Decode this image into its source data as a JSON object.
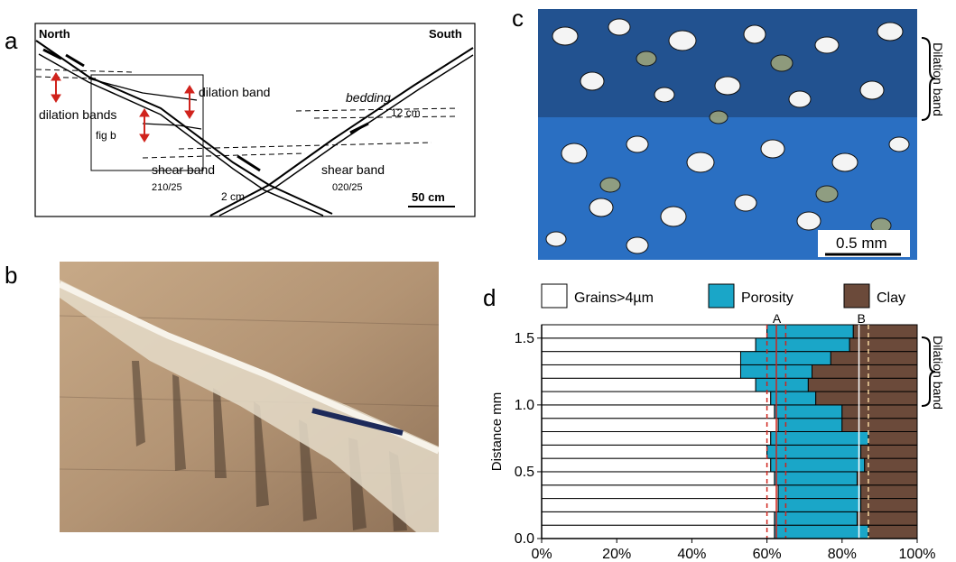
{
  "panels": {
    "a": {
      "letter": "a",
      "north": "North",
      "south": "South",
      "dilation_band": "dilation band",
      "dilation_bands": "dilation bands",
      "fig_b": "fig b",
      "bedding": "bedding",
      "offset_12": "12 cm",
      "shear_band_left": "shear band",
      "shear_band_left_orient": "210/25",
      "offset_2": "2 cm",
      "shear_band_right": "shear band",
      "shear_band_right_orient": "020/25",
      "scale": "50 cm"
    },
    "b": {
      "letter": "b"
    },
    "c": {
      "letter": "c",
      "scale": "0.5 mm",
      "side_label": "Dilation band"
    },
    "d": {
      "letter": "d",
      "side_label": "Dilation band",
      "marker_a": "A",
      "marker_b": "B"
    }
  },
  "chart_data": {
    "type": "bar",
    "orientation": "horizontal-stacked",
    "xlabel": "",
    "ylabel": "Distance mm",
    "xlim": [
      0,
      100
    ],
    "ylim": [
      0,
      1.6
    ],
    "x_ticks": [
      "0%",
      "20%",
      "40%",
      "60%",
      "80%",
      "100%"
    ],
    "y_ticks": [
      "0.0",
      "0.5",
      "1.0",
      "1.5"
    ],
    "legend": [
      "Grains>4µm",
      "Porosity",
      "Clay"
    ],
    "legend_position": "top",
    "colors": {
      "grains": "#ffffff",
      "porosity": "#1aa6c8",
      "clay": "#6b4a3a"
    },
    "distances": [
      0.05,
      0.15,
      0.25,
      0.35,
      0.45,
      0.55,
      0.65,
      0.75,
      0.85,
      0.95,
      1.05,
      1.15,
      1.25,
      1.35,
      1.45,
      1.55
    ],
    "series": [
      {
        "name": "Grains>4µm",
        "values": [
          62,
          62,
          63,
          63,
          62,
          61,
          60,
          61,
          63,
          62,
          61,
          57,
          53,
          53,
          57,
          60
        ]
      },
      {
        "name": "Porosity",
        "values": [
          25,
          22,
          22,
          22,
          22,
          25,
          25,
          26,
          17,
          18,
          12,
          14,
          19,
          24,
          25,
          23
        ]
      },
      {
        "name": "Clay",
        "values": [
          13,
          16,
          15,
          15,
          16,
          14,
          15,
          13,
          20,
          20,
          27,
          29,
          28,
          23,
          18,
          17
        ]
      }
    ]
  }
}
